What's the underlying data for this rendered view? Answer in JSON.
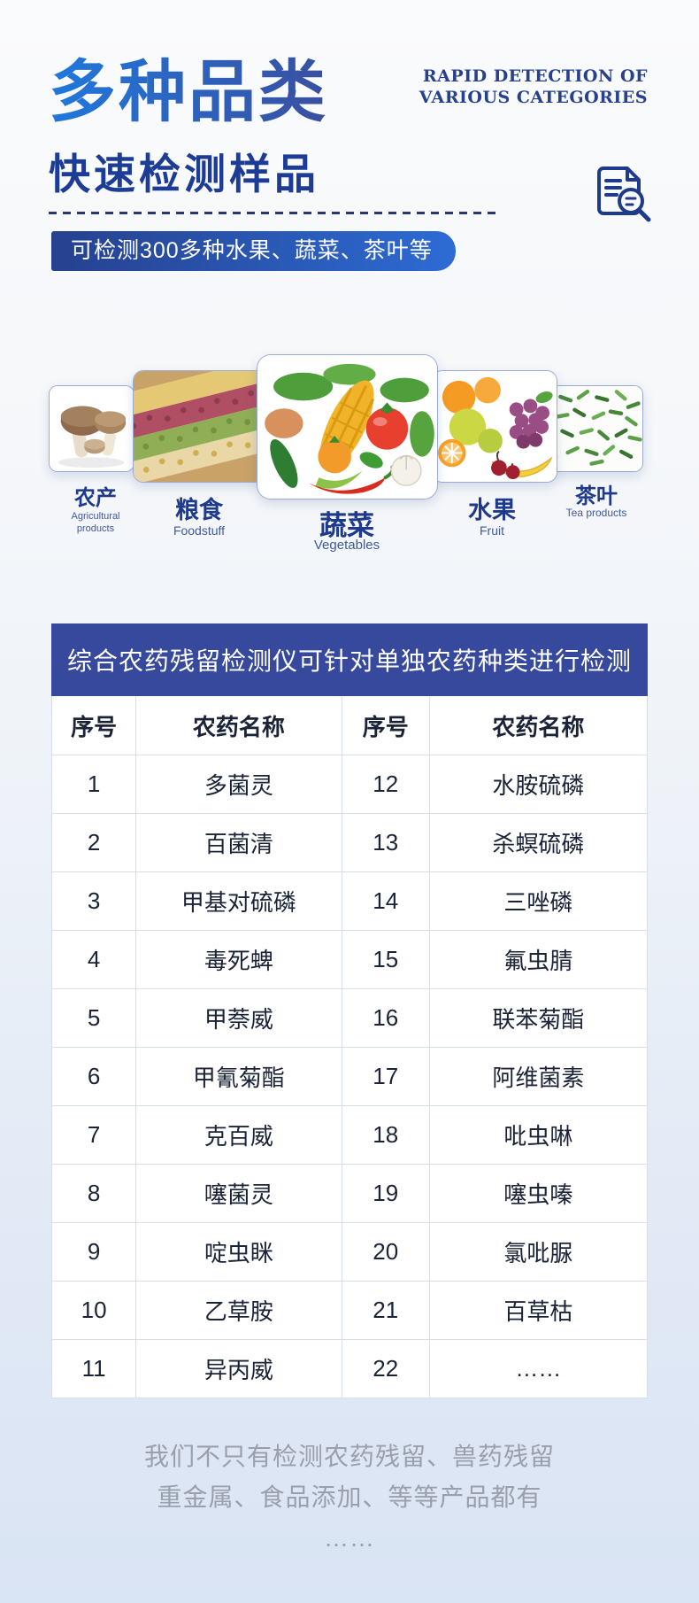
{
  "header": {
    "title_cn": "多种品类",
    "subtitle_cn": "快速检测样品",
    "title_en_line1": "RAPID DETECTION OF",
    "title_en_line2": "VARIOUS CATEGORIES",
    "banner": "可检测300多种水果、蔬菜、茶叶等",
    "icon": "document-magnifier-icon"
  },
  "categories": [
    {
      "name": "农产",
      "en": "Agricultural products",
      "image": "mushrooms-photo"
    },
    {
      "name": "粮食",
      "en": "Foodstuff",
      "image": "grains-photo"
    },
    {
      "name": "蔬菜",
      "en": "Vegetables",
      "image": "vegetables-photo"
    },
    {
      "name": "水果",
      "en": "Fruit",
      "image": "fruits-photo"
    },
    {
      "name": "茶叶",
      "en": "Tea products",
      "image": "tea-leaves-photo"
    }
  ],
  "table": {
    "title": "综合农药残留检测仪可针对单独农药种类进行检测",
    "columns": [
      "序号",
      "农药名称",
      "序号",
      "农药名称"
    ],
    "rows": [
      [
        "1",
        "多菌灵",
        "12",
        "水胺硫磷"
      ],
      [
        "2",
        "百菌清",
        "13",
        "杀螟硫磷"
      ],
      [
        "3",
        "甲基对硫磷",
        "14",
        "三唑磷"
      ],
      [
        "4",
        "毒死蜱",
        "15",
        "氟虫腈"
      ],
      [
        "5",
        "甲萘威",
        "16",
        "联苯菊酯"
      ],
      [
        "6",
        "甲氰菊酯",
        "17",
        "阿维菌素"
      ],
      [
        "7",
        "克百威",
        "18",
        "吡虫啉"
      ],
      [
        "8",
        "噻菌灵",
        "19",
        "噻虫嗪"
      ],
      [
        "9",
        "啶虫眯",
        "20",
        "氯吡脲"
      ],
      [
        "10",
        "乙草胺",
        "21",
        "百草枯"
      ],
      [
        "11",
        "异丙威",
        "22",
        "……"
      ]
    ]
  },
  "footer": {
    "line1": "我们不只有检测农药残留、兽药残留",
    "line2": "重金属、食品添加、等等产品都有",
    "line3": "……"
  },
  "colors": {
    "accent_navy": "#1d3c96",
    "title_gradient_start": "#1f78dd",
    "title_gradient_end": "#3a4f9f",
    "banner_gradient_start": "#26418f",
    "banner_gradient_end": "#2d6bd4",
    "table_header_bg": "#37499c",
    "cell_text": "#1a2337",
    "footer_text": "#99a0ab"
  }
}
